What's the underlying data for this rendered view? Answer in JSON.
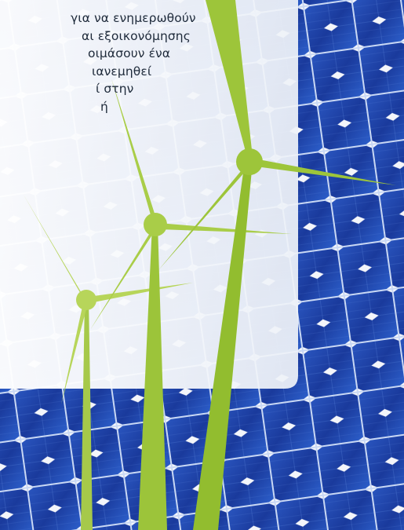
{
  "text_panel": {
    "lines": [
      "για να ενημερωθούν",
      "αι εξοικονόμησης",
      "οιμάσουν ένα",
      "ιανεμηθεί",
      "ί στην",
      "ή"
    ]
  },
  "colors": {
    "panel_fill": "#f3f5f8",
    "solar_cell_dark": "#1a3a9c",
    "solar_cell_light": "#3f6fd0",
    "turbine_green": "#9cc43a",
    "turbine_green_light": "#b7d55a",
    "text_color": "#1e2a3a"
  },
  "illustration": {
    "icons": [
      "solar-panel-grid",
      "wind-turbine",
      "wind-turbine",
      "wind-turbine"
    ]
  }
}
